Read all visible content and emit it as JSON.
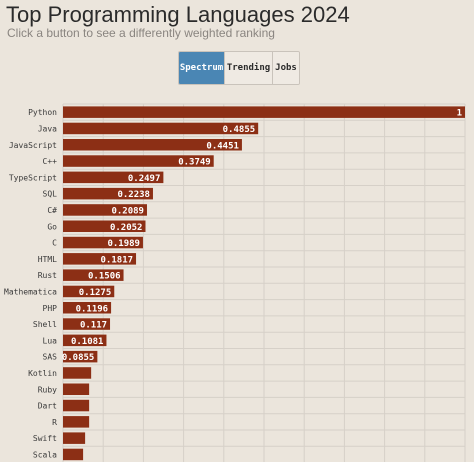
{
  "header": {
    "title": "Top Programming Languages 2024",
    "subtitle": "Click a button to see a differently weighted ranking"
  },
  "buttons": [
    {
      "label": "Spectrum",
      "active": true
    },
    {
      "label": "Trending",
      "active": false
    },
    {
      "label": "Jobs",
      "active": false
    }
  ],
  "colors": {
    "bar": "#8c2f15",
    "background": "#ebe5dc",
    "active_button": "#4a86b4",
    "grid": "#d6d0c8"
  },
  "chart_data": {
    "type": "bar",
    "orientation": "horizontal",
    "categories": [
      "Python",
      "Java",
      "JavaScript",
      "C++",
      "TypeScript",
      "SQL",
      "C#",
      "Go",
      "C",
      "HTML",
      "Rust",
      "Mathematica",
      "PHP",
      "Shell",
      "Lua",
      "SAS",
      "Kotlin",
      "Ruby",
      "Dart",
      "R",
      "Swift",
      "Scala"
    ],
    "values": [
      1,
      0.4855,
      0.4451,
      0.3749,
      0.2497,
      0.2238,
      0.2089,
      0.2052,
      0.1989,
      0.1817,
      0.1506,
      0.1275,
      0.1196,
      0.117,
      0.1081,
      0.0855,
      0.07,
      0.065,
      0.065,
      0.065,
      0.055,
      0.05
    ],
    "data_labels": [
      "1",
      "0.4855",
      "0.4451",
      "0.3749",
      "0.2497",
      "0.2238",
      "0.2089",
      "0.2052",
      "0.1989",
      "0.1817",
      "0.1506",
      "0.1275",
      "0.1196",
      "0.117",
      "0.1081",
      "0.0855",
      "",
      "",
      "",
      "",
      "",
      ""
    ],
    "xlim": [
      0,
      1
    ],
    "grid": true
  }
}
